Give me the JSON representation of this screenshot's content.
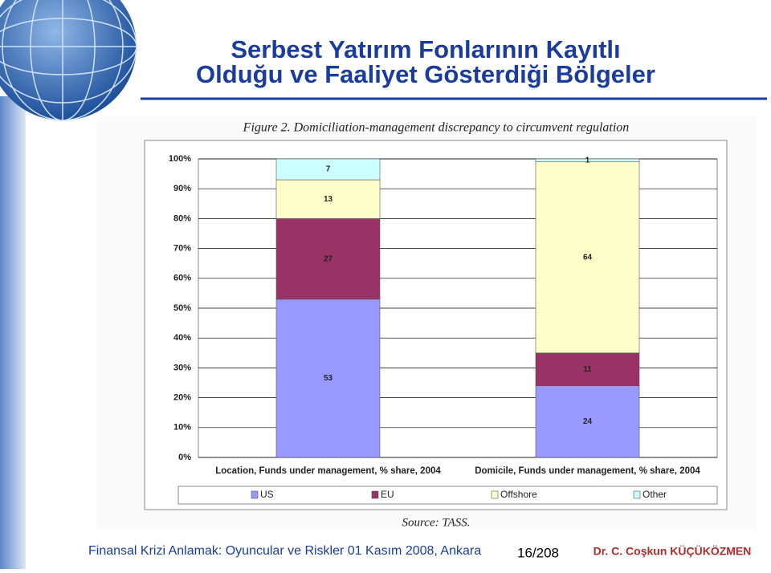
{
  "slide": {
    "title_lines": [
      "Serbest Yatırım Fonlarının Kayıtlı",
      "Olduğu ve Faaliyet Gösterdiği Bölgeler"
    ],
    "footer": "Finansal Krizi Anlamak: Oyuncular ve Riskler 01 Kasım 2008, Ankara",
    "page": "16/208",
    "author": "Dr. C. Coşkun KÜÇÜKÖZMEN"
  },
  "chart_data": {
    "type": "stacked_bar",
    "title": "Figure 2. Domiciliation-management discrepancy to circumvent regulation",
    "source": "Source: TASS.",
    "categories": [
      "Location, Funds under management, % share, 2004",
      "Domicile, Funds under management, % share, 2004"
    ],
    "series": [
      {
        "name": "US",
        "color": "#9999ff",
        "values": [
          53,
          24
        ]
      },
      {
        "name": "EU",
        "color": "#993366",
        "values": [
          27,
          11
        ]
      },
      {
        "name": "Offshore",
        "color": "#ffffcc",
        "values": [
          13,
          64
        ]
      },
      {
        "name": "Other",
        "color": "#ccffff",
        "values": [
          7,
          1
        ]
      }
    ],
    "ylim": [
      0,
      100
    ],
    "yticks": [
      {
        "value": 0,
        "label": "0%"
      },
      {
        "value": 10,
        "label": "10%"
      },
      {
        "value": 20,
        "label": "20%"
      },
      {
        "value": 30,
        "label": "30%"
      },
      {
        "value": 40,
        "label": "40%"
      },
      {
        "value": 50,
        "label": "50%"
      },
      {
        "value": 60,
        "label": "60%"
      },
      {
        "value": 70,
        "label": "70%"
      },
      {
        "value": 80,
        "label": "80%"
      },
      {
        "value": 90,
        "label": "90%"
      },
      {
        "value": 100,
        "label": "100%"
      }
    ],
    "grid": true,
    "legend": "bottom"
  }
}
